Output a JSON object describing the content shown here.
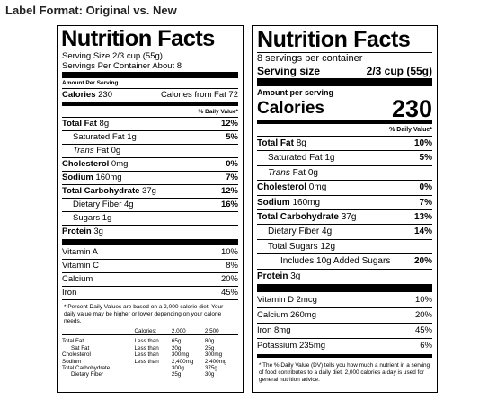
{
  "heading": "Label Format: Original vs. New",
  "original": {
    "title": "Nutrition Facts",
    "serving_size": "Serving Size 2/3 cup (55g)",
    "servings_per_container": "Servings Per Container About 8",
    "amount_per_serving": "Amount Per Serving",
    "calories_label": "Calories",
    "calories_value": "230",
    "calories_from_fat": "Calories from Fat 72",
    "dv_header": "% Daily Value*",
    "nutrients": [
      {
        "name": "Total Fat",
        "amount": "8g",
        "dv": "12%"
      },
      {
        "name": "Saturated Fat",
        "amount": "1g",
        "dv": "5%"
      },
      {
        "name": "Trans",
        "amount": "Fat 0g",
        "dv": ""
      },
      {
        "name": "Cholesterol",
        "amount": "0mg",
        "dv": "0%"
      },
      {
        "name": "Sodium",
        "amount": "160mg",
        "dv": "7%"
      },
      {
        "name": "Total Carbohydrate",
        "amount": "37g",
        "dv": "12%"
      },
      {
        "name": "Dietary Fiber",
        "amount": "4g",
        "dv": "16%"
      },
      {
        "name": "Sugars",
        "amount": "1g",
        "dv": ""
      },
      {
        "name": "Protein",
        "amount": "3g",
        "dv": ""
      }
    ],
    "vitamins": [
      {
        "name": "Vitamin A",
        "dv": "10%"
      },
      {
        "name": "Vitamin C",
        "dv": "8%"
      },
      {
        "name": "Calcium",
        "dv": "20%"
      },
      {
        "name": "Iron",
        "dv": "45%"
      }
    ],
    "footnote": "* Percent Daily Values are based on a 2,000 calorie diet. Your daily value may be higher or lower depending on your calorie needs.",
    "ref_table": {
      "header": [
        "",
        "Calories:",
        "2,000",
        "2,500"
      ],
      "rows": [
        [
          "Total Fat",
          "Less than",
          "65g",
          "80g"
        ],
        [
          "Sat Fat",
          "Less than",
          "20g",
          "25g"
        ],
        [
          "Cholesterol",
          "Less than",
          "300mg",
          "300mg"
        ],
        [
          "Sodium",
          "Less than",
          "2,400mg",
          "2,400mg"
        ],
        [
          "Total Carbohydrate",
          "",
          "300g",
          "375g"
        ],
        [
          "Dietary Fiber",
          "",
          "25g",
          "30g"
        ]
      ]
    }
  },
  "new": {
    "title": "Nutrition Facts",
    "servings_per_container": "8 servings per container",
    "serving_size_label": "Serving size",
    "serving_size_value": "2/3 cup (55g)",
    "amount_per_serving": "Amount per serving",
    "calories_label": "Calories",
    "calories_value": "230",
    "dv_header": "% Daily Value*",
    "nutrients": [
      {
        "name": "Total Fat",
        "amount": "8g",
        "dv": "10%"
      },
      {
        "name": "Saturated Fat",
        "amount": "1g",
        "dv": "5%"
      },
      {
        "name": "Trans",
        "amount": "Fat 0g",
        "dv": ""
      },
      {
        "name": "Cholesterol",
        "amount": "0mg",
        "dv": "0%"
      },
      {
        "name": "Sodium",
        "amount": "160mg",
        "dv": "7%"
      },
      {
        "name": "Total Carbohydrate",
        "amount": "37g",
        "dv": "13%"
      },
      {
        "name": "Dietary Fiber",
        "amount": "4g",
        "dv": "14%"
      },
      {
        "name": "Total Sugars",
        "amount": "12g",
        "dv": ""
      },
      {
        "name": "Includes 10g Added Sugars",
        "amount": "",
        "dv": "20%"
      },
      {
        "name": "Protein",
        "amount": "3g",
        "dv": ""
      }
    ],
    "vitamins": [
      {
        "name": "Vitamin D 2mcg",
        "dv": "10%"
      },
      {
        "name": "Calcium 260mg",
        "dv": "20%"
      },
      {
        "name": "Iron 8mg",
        "dv": "45%"
      },
      {
        "name": "Potassium 235mg",
        "dv": "6%"
      }
    ],
    "footnote": "* The % Daily Value (DV) tells you how much a nutrient in a serving of food contributes to a daily diet. 2,000 calories a day is used for general nutrition advice."
  }
}
